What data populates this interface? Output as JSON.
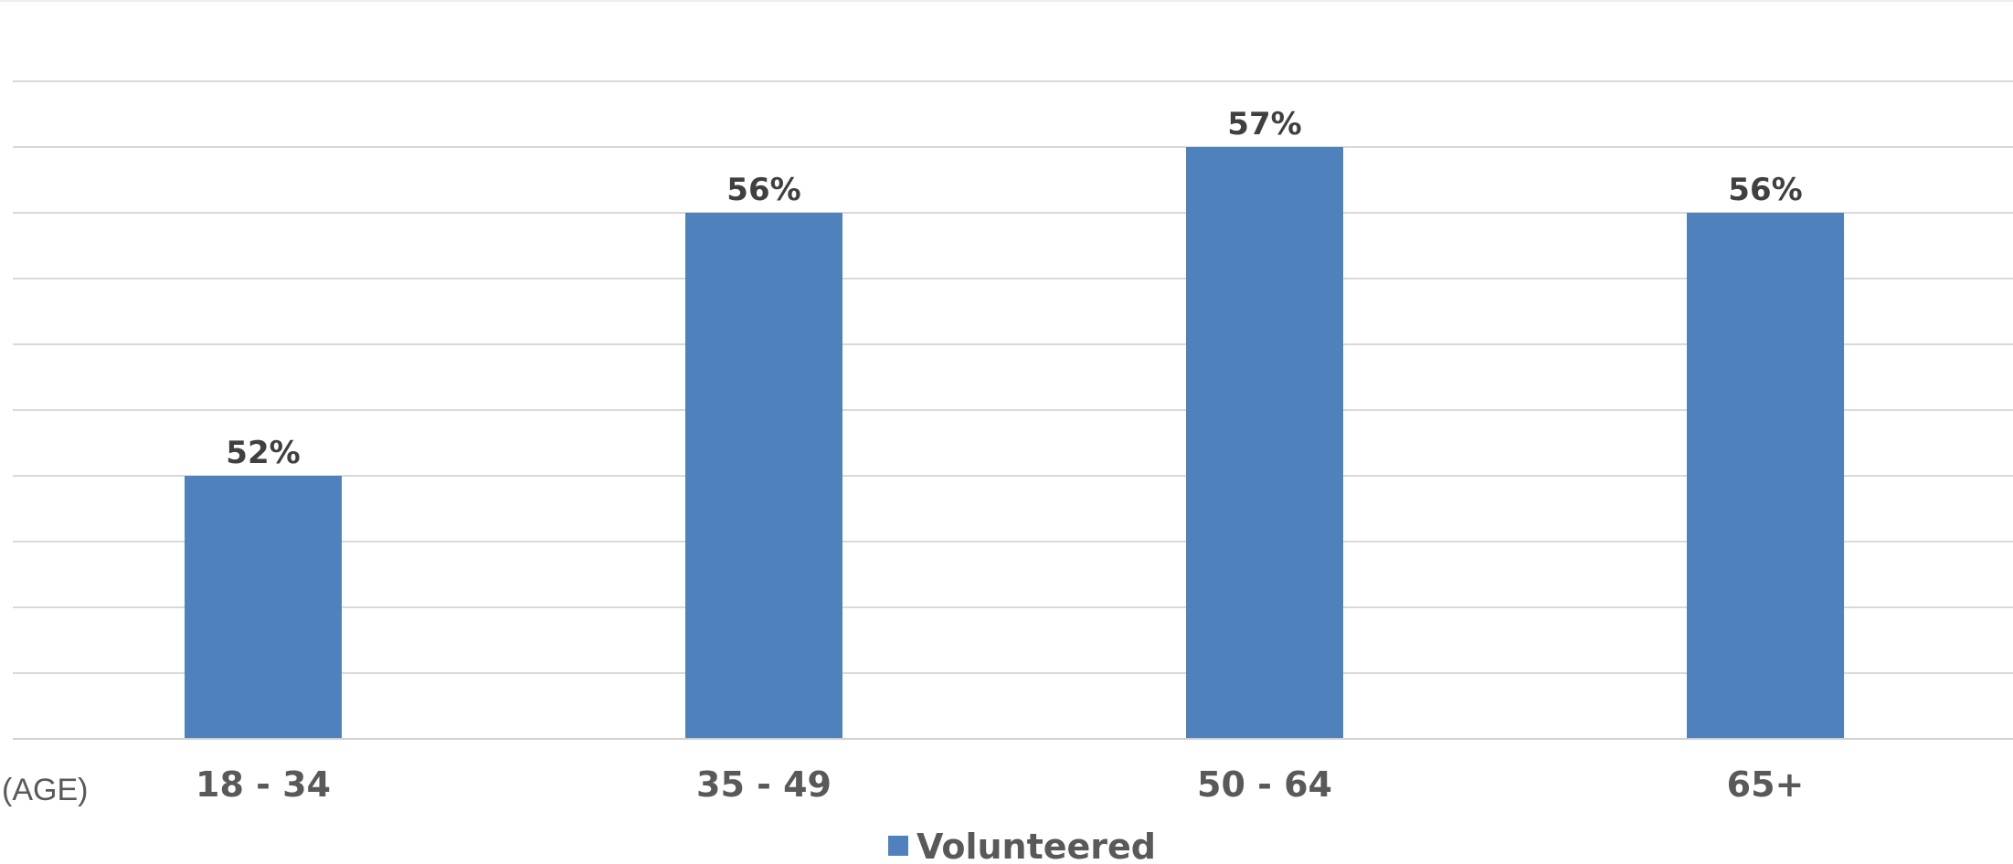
{
  "chart_data": {
    "type": "bar",
    "categories": [
      "18 - 34",
      "35 - 49",
      "50 - 64",
      "65+"
    ],
    "series": [
      {
        "name": "Volunteered",
        "values": [
          52,
          56,
          57,
          56
        ]
      }
    ],
    "data_labels": [
      "52%",
      "56%",
      "57%",
      "56%"
    ],
    "x_unit_label": "(AGE)",
    "ylim": [
      48,
      58
    ],
    "grid": true,
    "legend": "bottom",
    "colors": {
      "bar": "#4f81bd"
    }
  }
}
